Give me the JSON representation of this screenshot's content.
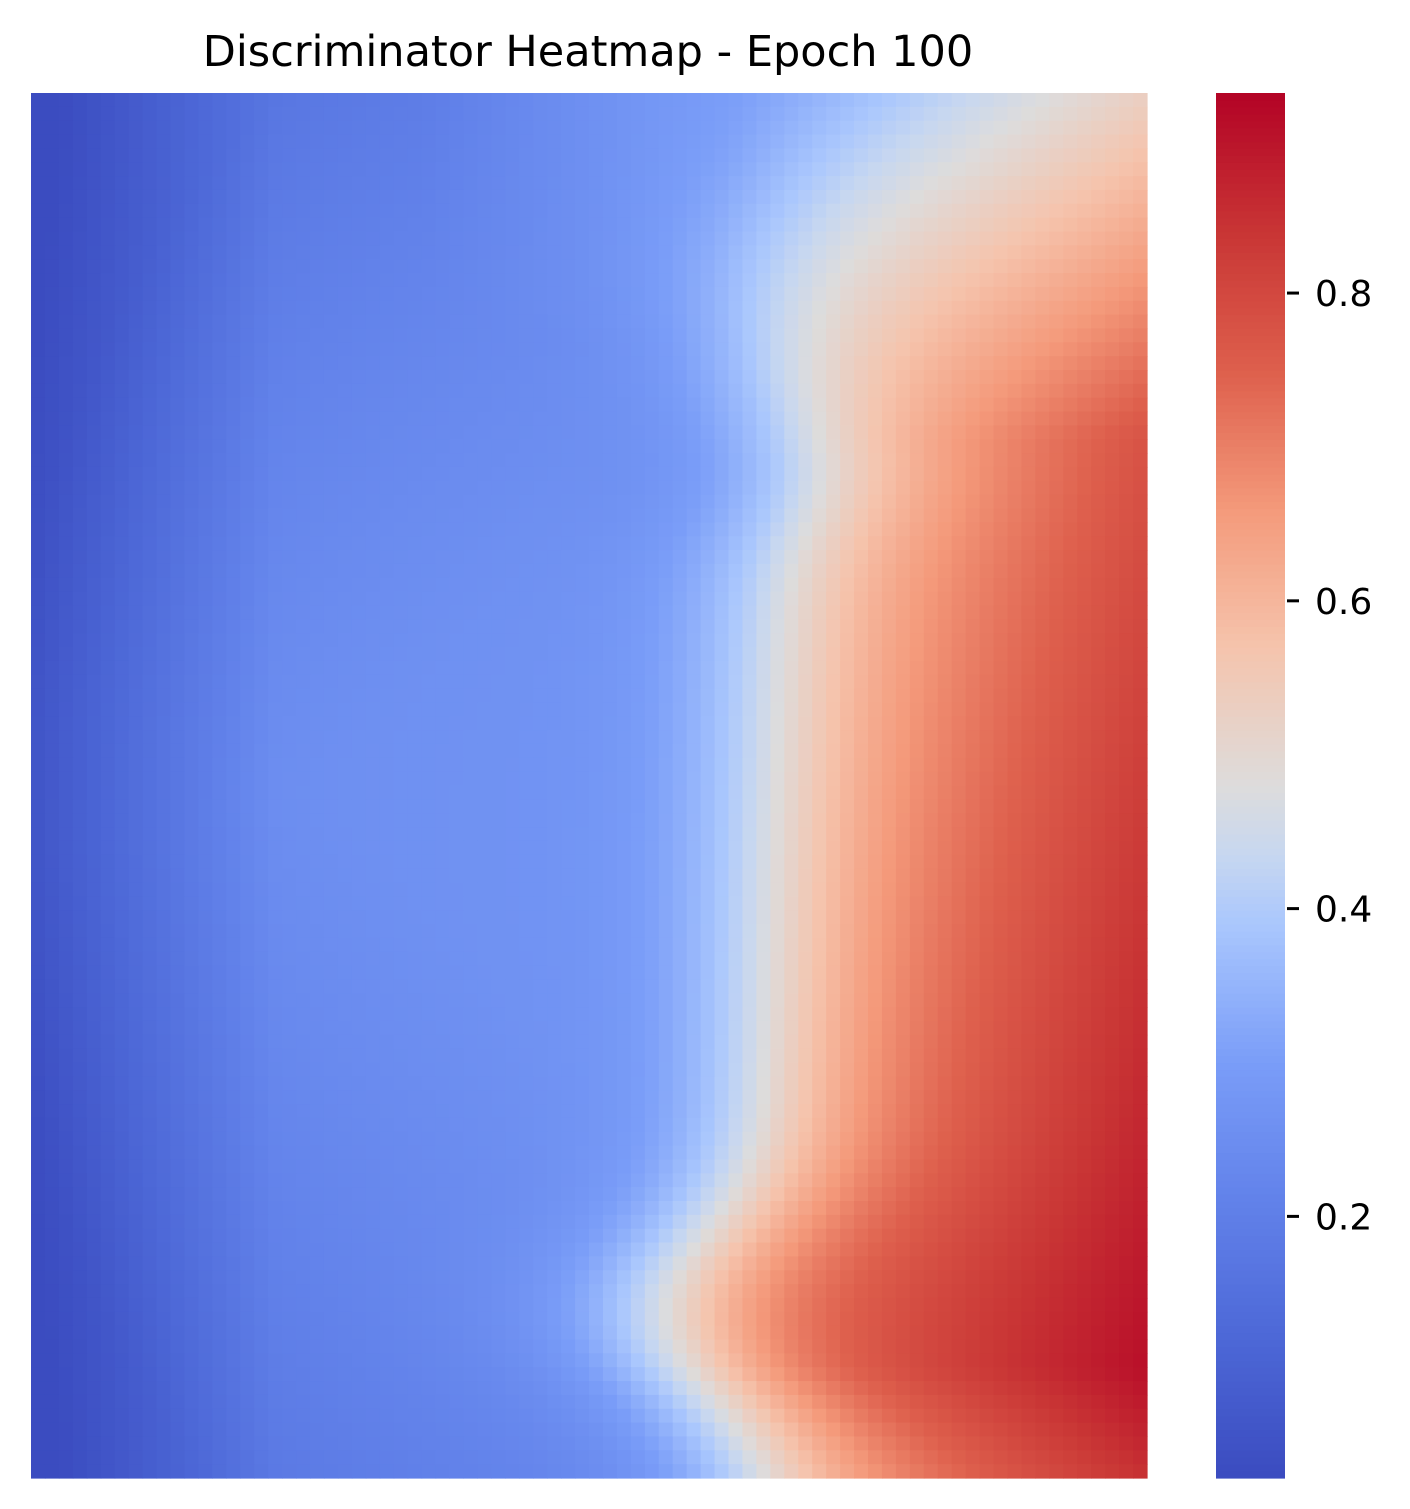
{
  "chart_data": {
    "type": "heatmap",
    "title": "Discriminator Heatmap - Epoch 100",
    "xlabel": "",
    "ylabel": "",
    "colormap": "coolwarm",
    "colorbar": {
      "vmin": 0.03,
      "vmax": 0.93,
      "ticks": [
        0.2,
        0.4,
        0.6,
        0.8
      ],
      "tick_labels": [
        "0.2",
        "0.4",
        "0.6",
        "0.8"
      ]
    },
    "rows": 100,
    "cols": 80,
    "value_field_estimate": {
      "description": "Low values (blue) on left edge and corners; broad medium-low basin in center-left; high values (red) on right side, peaking near the bottom-right.",
      "approx_min": 0.03,
      "approx_max": 0.93
    },
    "grid": false
  }
}
